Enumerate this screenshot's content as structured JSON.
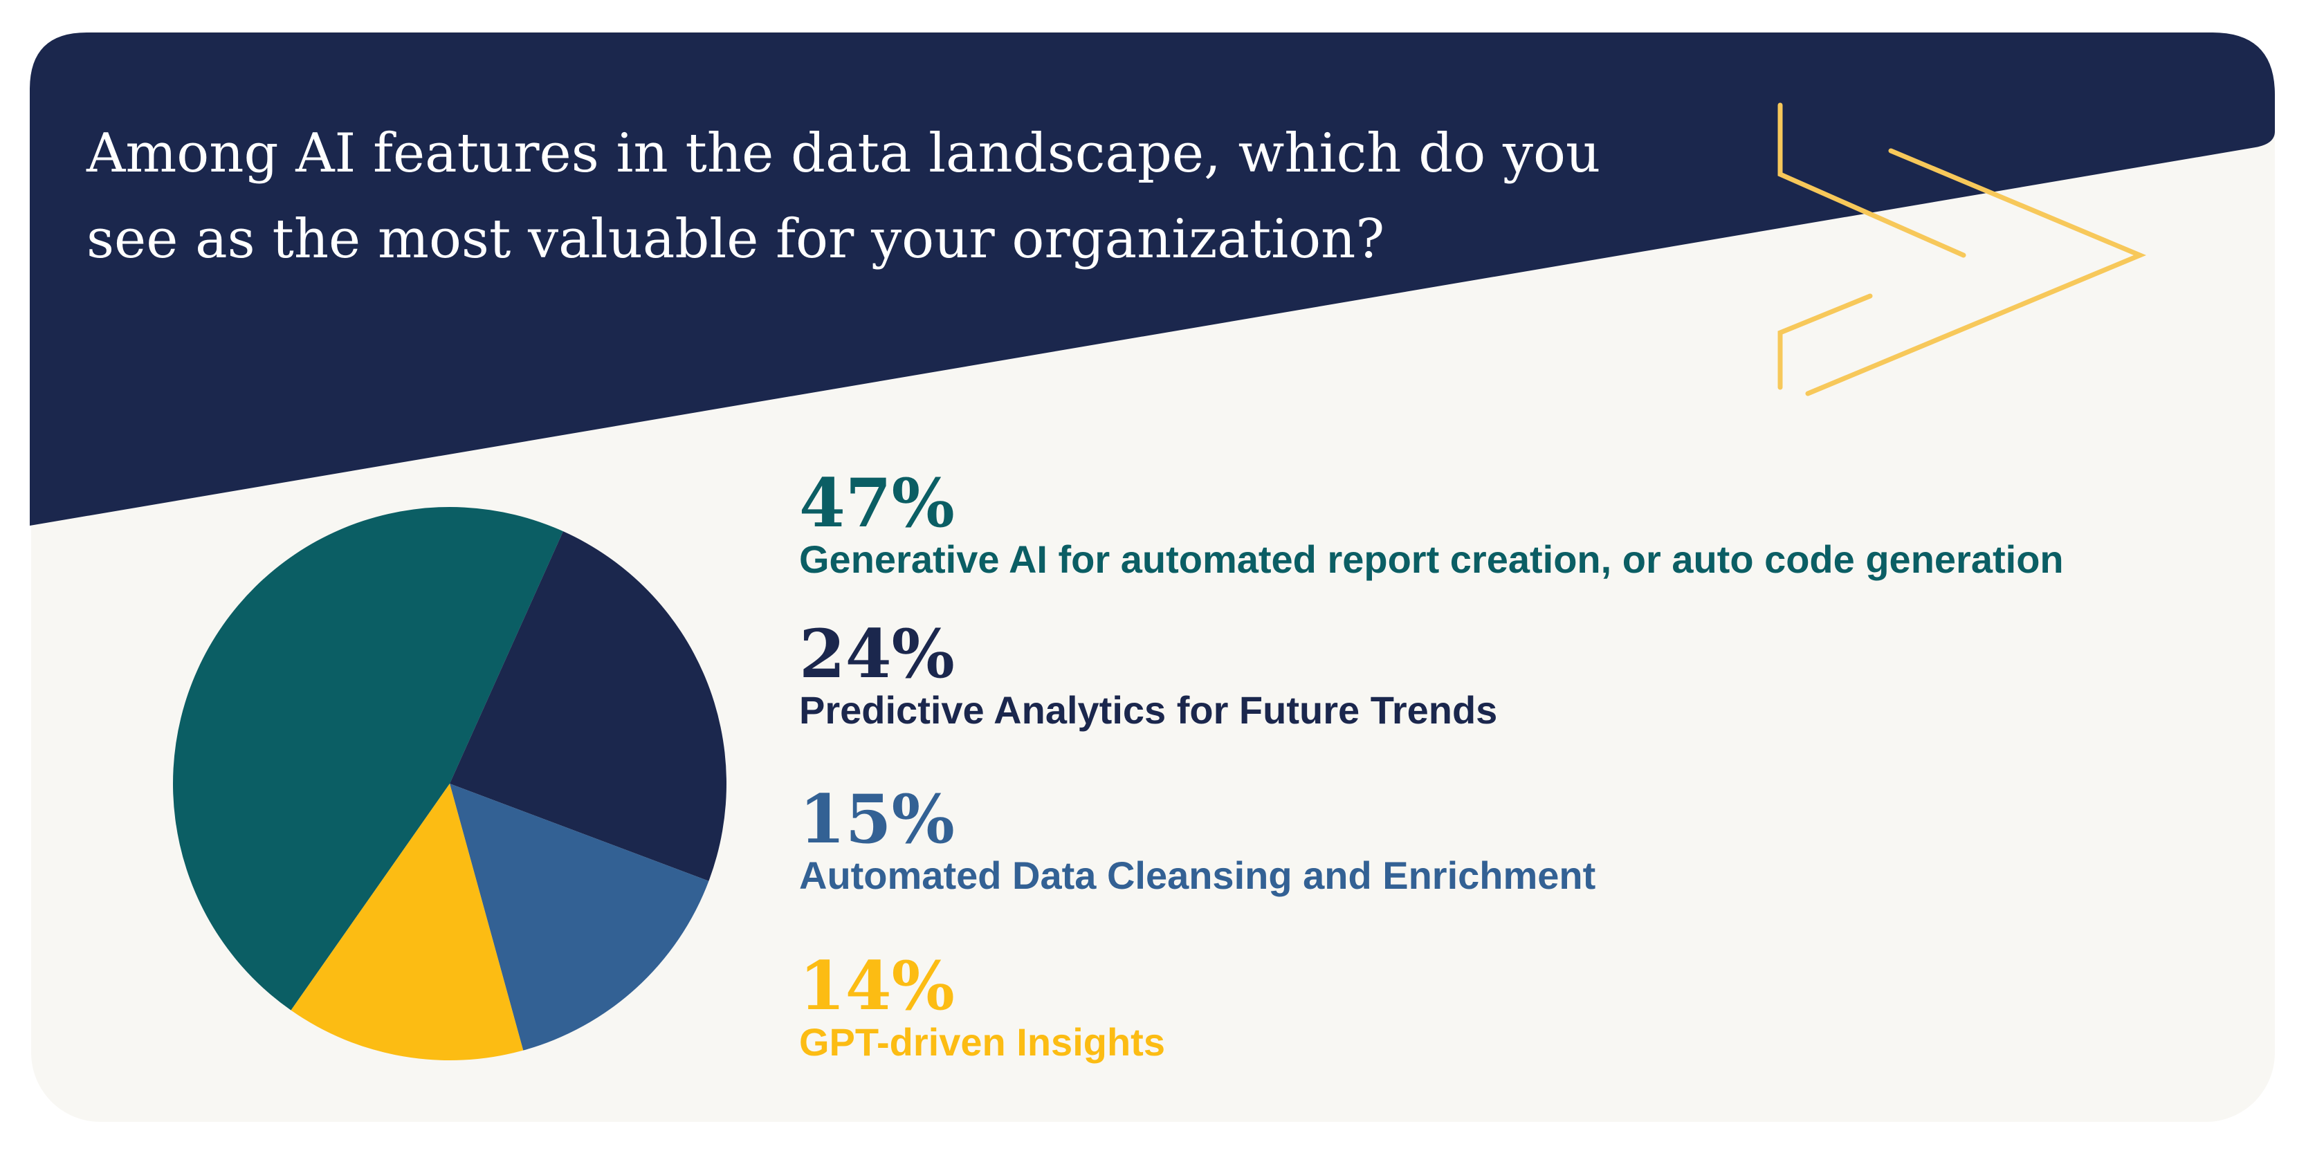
{
  "question": {
    "line1": "Among AI features in the data landscape, which do you",
    "line2": "see as the most valuable for your organization?"
  },
  "colors": {
    "navy": "#1B274D",
    "teal": "#0B5E64",
    "blue": "#336194",
    "yellow": "#FCBC13",
    "accent_line": "#F7C85A",
    "background": "#F8F7F3"
  },
  "chart_data": {
    "type": "pie",
    "slices": [
      {
        "label": "Generative AI for automated report creation, or auto code generation",
        "value": 47,
        "display": "47%",
        "color": "#0B5E64"
      },
      {
        "label": "Predictive Analytics for Future Trends",
        "value": 24,
        "display": "24%",
        "color": "#1B274D"
      },
      {
        "label": "Automated Data Cleansing and Enrichment",
        "value": 15,
        "display": "15%",
        "color": "#336194"
      },
      {
        "label": "GPT-driven Insights",
        "value": 14,
        "display": "14%",
        "color": "#FCBC13"
      }
    ]
  }
}
